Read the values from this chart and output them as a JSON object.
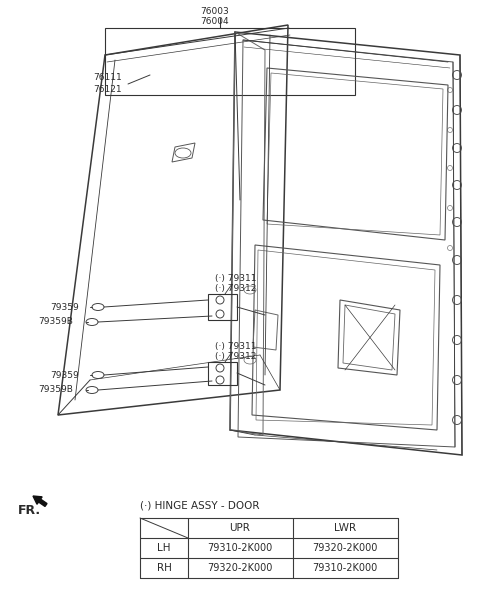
{
  "bg_color": "#ffffff",
  "lc": "#3a3a3a",
  "tc": "#2a2a2a",
  "fig_width": 4.8,
  "fig_height": 5.98,
  "labels": {
    "top_label1": "76003",
    "top_label2": "76004",
    "ul_label1": "76111",
    "ul_label2": "76121",
    "hu_l1": "(·) 79311",
    "hu_l2": "(·) 79312",
    "hl_l1": "(·) 79311",
    "hl_l2": "(·) 79312",
    "bu1": "79359",
    "bu2": "79359B",
    "bl1": "79359",
    "bl2": "79359B",
    "fr": "FR.",
    "tbl_title": "(·) HINGE ASSY - DOOR",
    "col1": "UPR",
    "col2": "LWR",
    "r1": "LH",
    "r2": "RH",
    "lh_upr": "79310-2K000",
    "lh_lwr": "79320-2K000",
    "rh_upr": "79320-2K000",
    "rh_lwr": "79310-2K000"
  }
}
